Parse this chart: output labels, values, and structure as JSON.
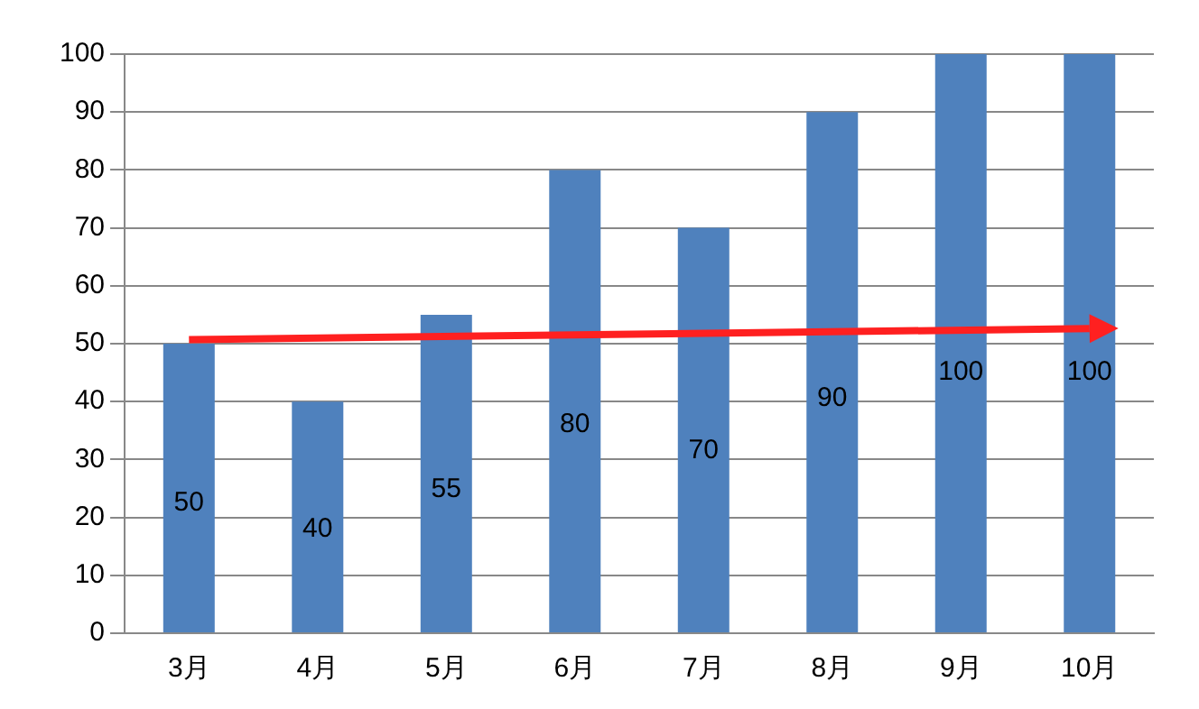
{
  "chart_data": {
    "type": "bar",
    "categories": [
      "3月",
      "4月",
      "5月",
      "6月",
      "7月",
      "8月",
      "9月",
      "10月"
    ],
    "series": [
      {
        "color": "#4f81bd",
        "values": [
          50,
          40,
          55,
          80,
          70,
          90,
          100,
          100
        ],
        "value_labels": [
          "50",
          "40",
          "55",
          "80",
          "70",
          "90",
          "100",
          "100"
        ]
      },
      {
        "type": "line",
        "color": "#ff2020",
        "x": [
          "3月",
          "10月"
        ],
        "values": [
          50.7,
          52.6
        ]
      }
    ],
    "ylim": [
      0,
      100
    ],
    "yticks": [
      0,
      10,
      20,
      30,
      40,
      50,
      60,
      70,
      80,
      90,
      100
    ],
    "grid": "y"
  }
}
